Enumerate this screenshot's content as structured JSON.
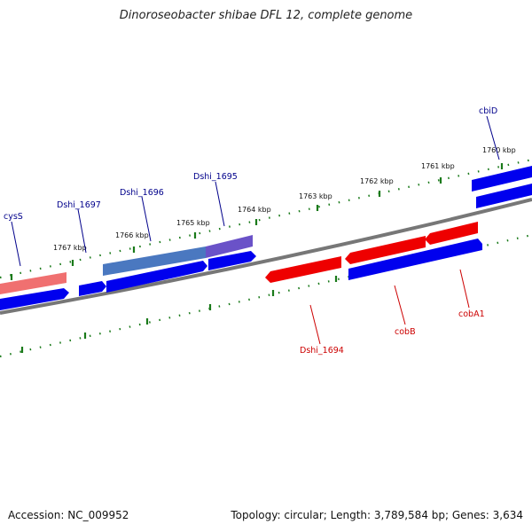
{
  "title": "Dinoroseobacter shibae DFL 12, complete genome",
  "footer": {
    "accession": "Accession: NC_009952",
    "summary": "Topology: circular; Length: 3,789,584 bp; Genes: 3,634"
  },
  "colors": {
    "forward_cds": "#0000ee",
    "reverse_cds": "#ee0000",
    "backbone": "#777777",
    "ticks": "#1a7a1a",
    "forward_label": "#00008b",
    "reverse_label": "#cc0000"
  },
  "tick_labels": [
    "1760 kbp",
    "1761 kbp",
    "1762 kbp",
    "1763 kbp",
    "1764 kbp",
    "1765 kbp",
    "1766 kbp",
    "1767 kbp"
  ],
  "gene_labels": {
    "forward": [
      "cbiD",
      "Dshi_1695",
      "Dshi_1696",
      "Dshi_1697",
      "cysS"
    ],
    "reverse": [
      "cobA1",
      "cobB",
      "Dshi_1694"
    ]
  }
}
